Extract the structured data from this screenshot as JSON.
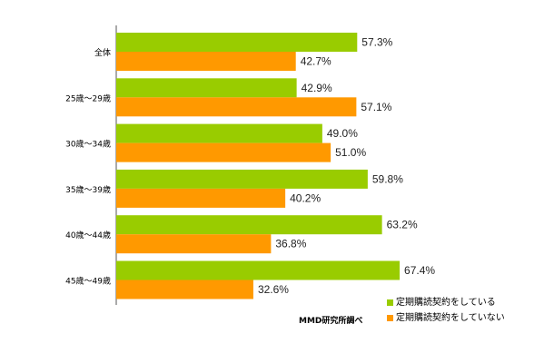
{
  "chart_data": {
    "type": "bar",
    "orientation": "horizontal",
    "categories": [
      "全体",
      "25歳～29歳",
      "30歳～34歳",
      "35歳～39歳",
      "40歳～44歳",
      "45歳～49歳"
    ],
    "series": [
      {
        "name": "定期購読契約をしている",
        "values": [
          57.3,
          42.9,
          49.0,
          59.8,
          63.2,
          67.4
        ],
        "labels": [
          "57.3%",
          "42.9%",
          "49.0%",
          "59.8%",
          "63.2%",
          "67.4%"
        ],
        "color": "#99cc00"
      },
      {
        "name": "定期購読契約をしていない",
        "values": [
          42.7,
          57.1,
          51.0,
          40.2,
          36.8,
          32.6
        ],
        "labels": [
          "42.7%",
          "57.1%",
          "51.0%",
          "40.2%",
          "36.8%",
          "32.6%"
        ],
        "color": "#ff9900"
      }
    ],
    "xlim": [
      0,
      100
    ],
    "grid": false,
    "legend_position": "bottom-right"
  },
  "source_note": "MMD研究所調べ"
}
